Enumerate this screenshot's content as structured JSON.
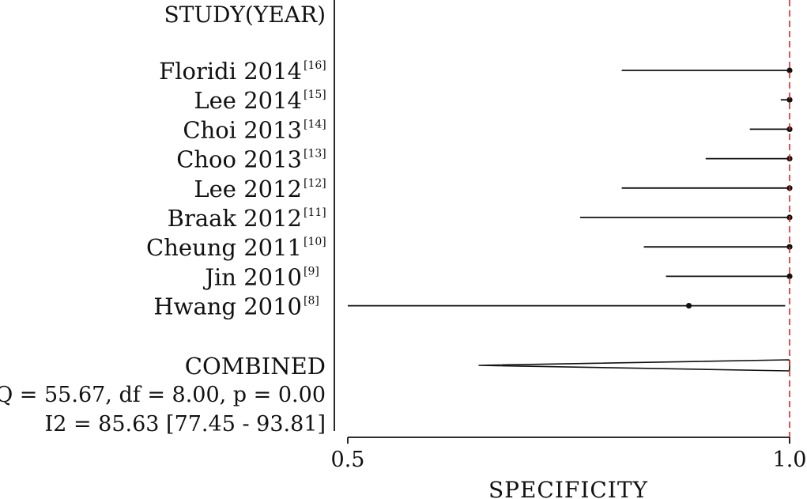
{
  "chart_data": {
    "type": "forest",
    "column_title": "STUDY(YEAR)",
    "xlabel": "SPECIFICITY",
    "xlim": [
      0.5,
      1.0
    ],
    "x_ticks": [
      "0.5",
      "1.0"
    ],
    "reference_line": 1.0,
    "reference_line_color": "#d62728",
    "studies": [
      {
        "label": "Floridi 2014",
        "ref": "[16]",
        "estimate": 1.0,
        "lower": 0.81,
        "upper": 1.0
      },
      {
        "label": "Lee 2014",
        "ref": "[15]",
        "estimate": 1.0,
        "lower": 0.99,
        "upper": 1.0
      },
      {
        "label": "Choi 2013",
        "ref": "[14]",
        "estimate": 1.0,
        "lower": 0.955,
        "upper": 1.0
      },
      {
        "label": "Choo 2013",
        "ref": "[13]",
        "estimate": 1.0,
        "lower": 0.905,
        "upper": 1.0
      },
      {
        "label": "Lee 2012",
        "ref": "[12]",
        "estimate": 1.0,
        "lower": 0.81,
        "upper": 1.0
      },
      {
        "label": "Braak 2012",
        "ref": "[11]",
        "estimate": 1.0,
        "lower": 0.763,
        "upper": 1.0
      },
      {
        "label": "Cheung 2011",
        "ref": "[10]",
        "estimate": 1.0,
        "lower": 0.835,
        "upper": 1.0
      },
      {
        "label": "Jin 2010",
        "ref": "[9]",
        "estimate": 1.0,
        "lower": 0.86,
        "upper": 1.0
      },
      {
        "label": "Hwang 2010",
        "ref": "[8]",
        "estimate": 0.886,
        "lower": 0.5,
        "upper": 0.995
      }
    ],
    "combined": {
      "label": "COMBINED",
      "estimate": 1.0,
      "lower": 0.648,
      "upper": 1.0
    },
    "heterogeneity": {
      "q_line": "Q = 55.67, df = 8.00, p =  0.00",
      "i2_line": "I2 = 85.63 [77.45 - 93.81]"
    }
  }
}
